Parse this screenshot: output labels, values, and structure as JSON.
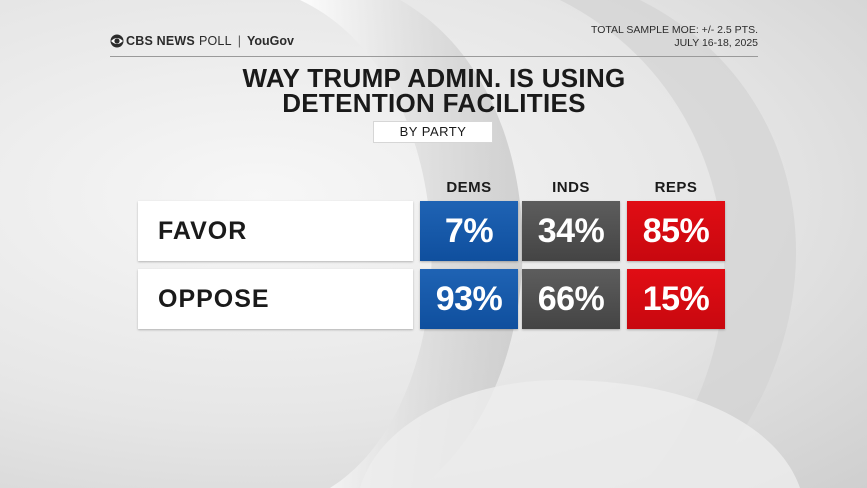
{
  "header": {
    "brand": "CBS NEWS",
    "poll": "POLL",
    "separator": "|",
    "partner": "YouGov",
    "moe": "TOTAL SAMPLE MOE: +/- 2.5 PTS.",
    "dates": "JULY 16-18, 2025"
  },
  "title_line1": "WAY TRUMP ADMIN. IS USING",
  "title_line2": "DETENTION FACILITIES",
  "subtitle": "BY PARTY",
  "colors": {
    "dems": "#1557a8",
    "inds": "#4f4f4f",
    "reps": "#d50b12"
  },
  "chart_data": {
    "type": "table",
    "title": "WAY TRUMP ADMIN. IS USING DETENTION FACILITIES",
    "subtitle": "BY PARTY",
    "columns": [
      "DEMS",
      "INDS",
      "REPS"
    ],
    "rows": [
      {
        "label": "FAVOR",
        "values": [
          7,
          34,
          85
        ],
        "display": [
          "7%",
          "34%",
          "85%"
        ]
      },
      {
        "label": "OPPOSE",
        "values": [
          93,
          66,
          15
        ],
        "display": [
          "93%",
          "66%",
          "15%"
        ]
      }
    ],
    "unit": "%"
  }
}
